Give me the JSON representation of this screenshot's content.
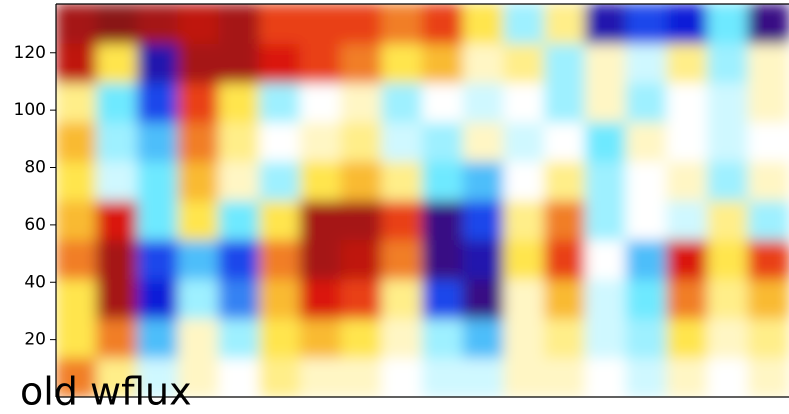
{
  "chart_data": {
    "type": "heatmap",
    "annotation": "old wflux",
    "ylim": [
      0,
      137
    ],
    "yticks": [
      20,
      40,
      60,
      80,
      100,
      120
    ],
    "clim": [
      -1,
      1
    ],
    "colorscale": [
      "#4b0a5a",
      "#0a1ee6",
      "#5ee6ff",
      "#ffffff",
      "#ffe23a",
      "#e3190f",
      "#8a1414"
    ],
    "z": [
      [
        0.5,
        0.2,
        -0.1,
        0.1,
        0.0,
        0.2,
        0.1,
        0.1,
        0.0,
        -0.1,
        -0.1,
        0.1,
        0.1,
        0.0,
        -0.1,
        0.1,
        0.0,
        0.1
      ],
      [
        0.3,
        0.5,
        -0.4,
        0.1,
        -0.2,
        0.3,
        0.4,
        0.3,
        0.1,
        -0.2,
        -0.4,
        0.1,
        0.2,
        -0.1,
        -0.2,
        0.3,
        0.1,
        0.2
      ],
      [
        0.3,
        0.9,
        -0.7,
        -0.2,
        -0.5,
        0.4,
        0.7,
        0.6,
        0.2,
        -0.6,
        -0.9,
        0.1,
        0.4,
        -0.1,
        -0.3,
        0.5,
        0.2,
        0.4
      ],
      [
        0.5,
        0.9,
        -0.6,
        -0.4,
        -0.6,
        0.5,
        0.9,
        0.8,
        0.5,
        -0.9,
        -0.8,
        0.3,
        0.6,
        0.0,
        -0.4,
        0.7,
        0.3,
        0.6
      ],
      [
        0.4,
        0.7,
        -0.3,
        0.3,
        -0.3,
        0.3,
        0.9,
        0.9,
        0.6,
        -0.9,
        -0.6,
        0.2,
        0.5,
        -0.2,
        0.0,
        -0.1,
        0.2,
        -0.2
      ],
      [
        0.3,
        -0.1,
        -0.3,
        0.4,
        0.1,
        -0.2,
        0.3,
        0.4,
        0.2,
        -0.3,
        -0.4,
        0.0,
        0.2,
        -0.2,
        0.0,
        0.1,
        -0.2,
        0.1
      ],
      [
        0.4,
        -0.2,
        -0.4,
        0.5,
        0.2,
        0.0,
        0.1,
        0.2,
        -0.1,
        -0.2,
        0.1,
        -0.1,
        0.0,
        -0.3,
        0.1,
        0.0,
        -0.1,
        0.0
      ],
      [
        0.2,
        -0.3,
        -0.6,
        0.6,
        0.3,
        -0.2,
        0.0,
        0.1,
        -0.2,
        0.0,
        -0.1,
        0.0,
        -0.2,
        0.1,
        -0.2,
        0.0,
        -0.1,
        0.1
      ],
      [
        0.8,
        0.3,
        -0.8,
        0.9,
        0.9,
        0.7,
        0.6,
        0.5,
        0.3,
        0.4,
        0.1,
        0.2,
        -0.2,
        0.1,
        -0.1,
        0.2,
        -0.2,
        0.1
      ],
      [
        0.9,
        1.0,
        0.9,
        0.8,
        0.9,
        0.6,
        0.6,
        0.6,
        0.5,
        0.6,
        0.3,
        -0.2,
        0.2,
        -0.8,
        -0.6,
        -0.7,
        -0.3,
        -0.9
      ]
    ]
  }
}
